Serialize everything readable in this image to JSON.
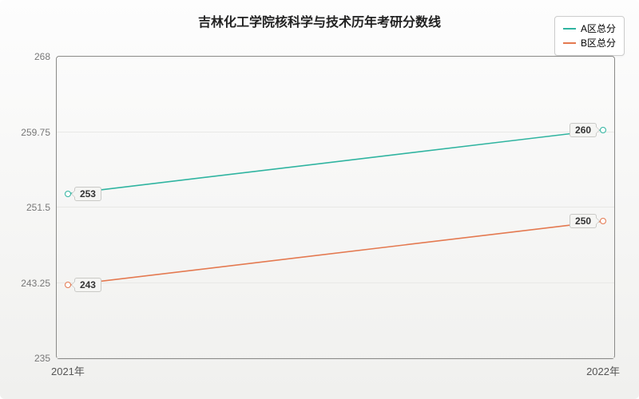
{
  "chart": {
    "type": "line",
    "title": "吉林化工学院核科学与技术历年考研分数线",
    "title_fontsize": 16,
    "title_color": "#222222",
    "background_gradient_top": "#fdfdfd",
    "background_gradient_bottom": "#f0f0ee",
    "plot_border_color": "#8a8a88",
    "grid_color": "#e8e8e6",
    "axis_label_color": "#777777",
    "x_categories": [
      "2021年",
      "2022年"
    ],
    "y_min": 235,
    "y_max": 268,
    "y_ticks": [
      235,
      243.25,
      251.5,
      259.75,
      268
    ],
    "series": [
      {
        "name": "A区总分",
        "color": "#2fb4a0",
        "line_width": 1.6,
        "marker": "circle",
        "marker_size": 4,
        "values": [
          253,
          260
        ]
      },
      {
        "name": "B区总分",
        "color": "#e47950",
        "line_width": 1.6,
        "marker": "circle",
        "marker_size": 4,
        "values": [
          243,
          250
        ]
      }
    ],
    "legend": {
      "position": "top-right",
      "bg": "#ffffff",
      "border": "#cccccc",
      "fontsize": 12
    },
    "data_label": {
      "bg": "#f5f5f3",
      "border": "#c9c9c6",
      "fontsize": 12,
      "color": "#333333"
    }
  }
}
